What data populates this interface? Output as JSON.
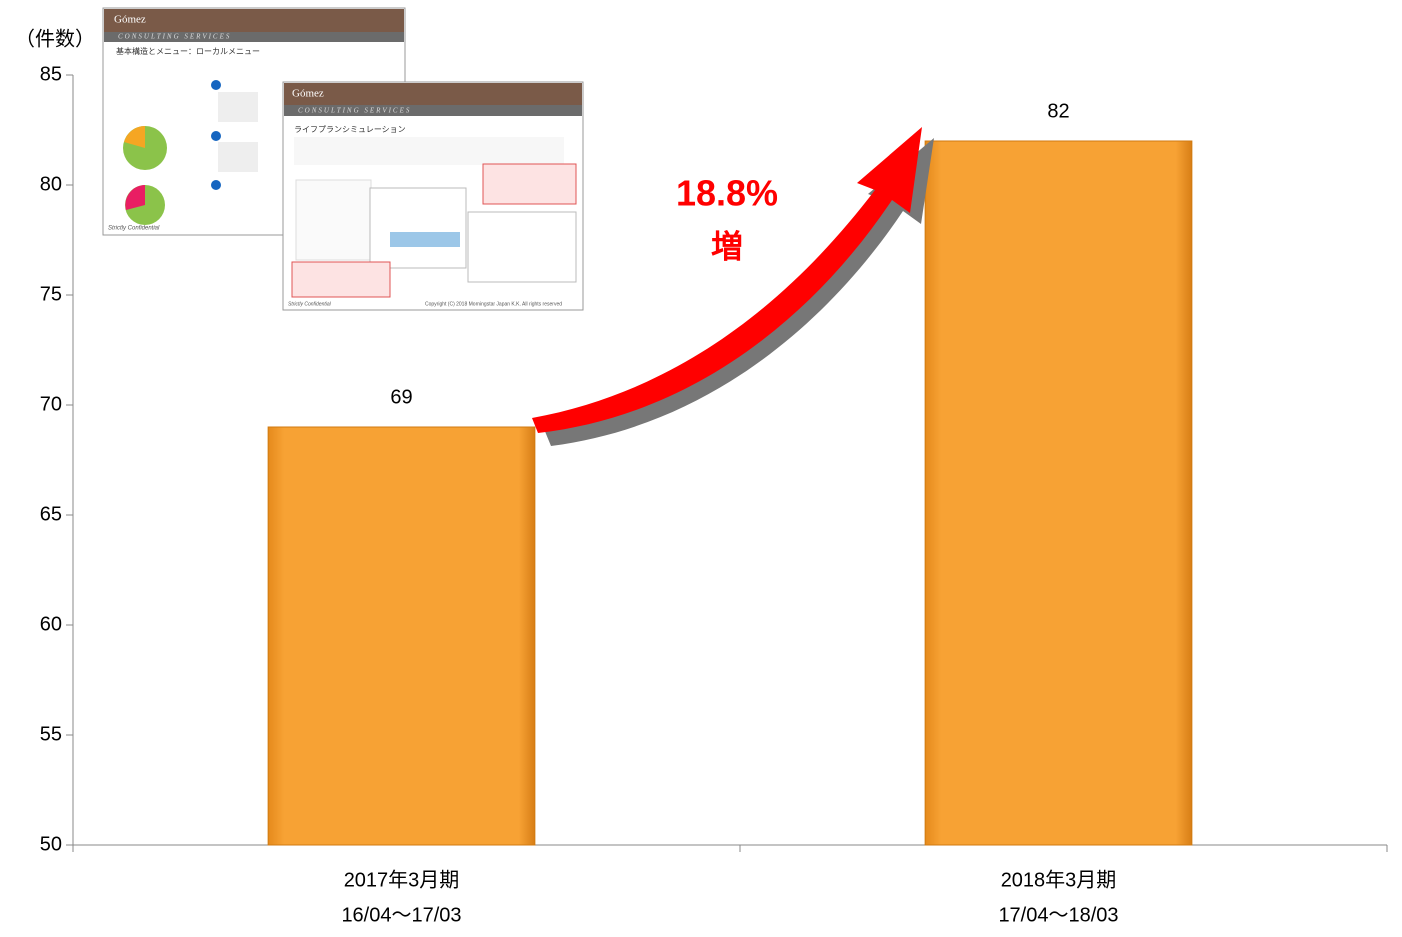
{
  "chart_data": {
    "type": "bar",
    "y_label": "（件数）",
    "categories": [
      [
        "2017年3月期",
        "16/04〜17/03"
      ],
      [
        "2018年3月期",
        "17/04〜18/03"
      ]
    ],
    "values": [
      69,
      82
    ],
    "color": "#F7A234",
    "ylim": [
      50,
      85
    ],
    "yticks": [
      50,
      55,
      60,
      65,
      70,
      75,
      80,
      85
    ],
    "annotation": [
      "18.8%",
      "増"
    ],
    "annotation_color": "#FF0000"
  },
  "thumbnails": [
    {
      "brand": "Gómez",
      "banner": "CONSULTING SERVICES",
      "title": "基本構造とメニュー：ローカルメニュー",
      "footer": "Strictly Confidential"
    },
    {
      "brand": "Gómez",
      "banner": "CONSULTING SERVICES",
      "title": "ライフプランシミュレーション",
      "footer": "Strictly Confidential",
      "copyright": "Copyright (C) 2018 Morningstar Japan K.K. All rights reserved"
    }
  ]
}
